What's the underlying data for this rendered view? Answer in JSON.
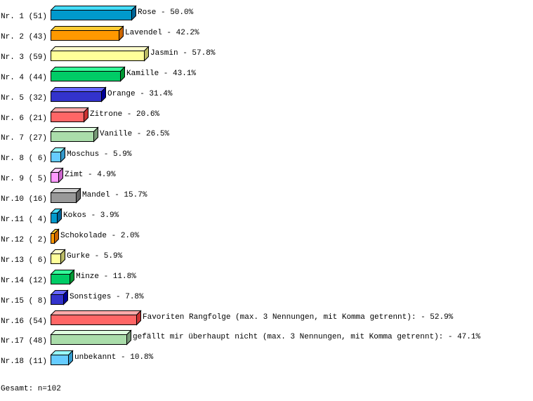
{
  "chart_data": {
    "type": "bar",
    "orientation": "horizontal",
    "style": "3d",
    "grid": false,
    "categories": [
      "Rose",
      "Lavendel",
      "Jasmin",
      "Kamille",
      "Orange",
      "Zitrone",
      "Vanille",
      "Moschus",
      "Zimt",
      "Mandel",
      "Kokos",
      "Schokolade",
      "Gurke",
      "Minze",
      "Sonstiges",
      "Favoriten Rangfolge (max. 3 Nennungen, mit Komma getrennt):",
      "gefällt mir überhaupt nicht (max. 3 Nennungen, mit Komma getrennt):",
      "unbekannt"
    ],
    "row_labels": [
      "Nr. 1 (51)",
      "Nr. 2 (43)",
      "Nr. 3 (59)",
      "Nr. 4 (44)",
      "Nr. 5 (32)",
      "Nr. 6 (21)",
      "Nr. 7 (27)",
      "Nr. 8 ( 6)",
      "Nr. 9 ( 5)",
      "Nr.10 (16)",
      "Nr.11 ( 4)",
      "Nr.12 ( 2)",
      "Nr.13 ( 6)",
      "Nr.14 (12)",
      "Nr.15 ( 8)",
      "Nr.16 (54)",
      "Nr.17 (48)",
      "Nr.18 (11)"
    ],
    "counts": [
      51,
      43,
      59,
      44,
      32,
      21,
      27,
      6,
      5,
      16,
      4,
      2,
      6,
      12,
      8,
      54,
      48,
      11
    ],
    "values": [
      50.0,
      42.2,
      57.8,
      43.1,
      31.4,
      20.6,
      26.5,
      5.9,
      4.9,
      15.7,
      3.9,
      2.0,
      5.9,
      11.8,
      7.8,
      52.9,
      47.1,
      10.8
    ],
    "value_labels": [
      "50.0%",
      "42.2%",
      "57.8%",
      "43.1%",
      "31.4%",
      "20.6%",
      "26.5%",
      "5.9%",
      "4.9%",
      "15.7%",
      "3.9%",
      "2.0%",
      "5.9%",
      "11.8%",
      "7.8%",
      "52.9%",
      "47.1%",
      "10.8%"
    ],
    "unit": "%",
    "palette": [
      {
        "front": "#0099cc",
        "top": "#44ddff",
        "side": "#006699"
      },
      {
        "front": "#ff9900",
        "top": "#ffcc33",
        "side": "#cc6600"
      },
      {
        "front": "#ffff99",
        "top": "#ffffcc",
        "side": "#bbbb66"
      },
      {
        "front": "#00cc66",
        "top": "#33ff99",
        "side": "#009933"
      },
      {
        "front": "#3333cc",
        "top": "#6666ff",
        "side": "#000099"
      },
      {
        "front": "#ff6666",
        "top": "#ffaaaa",
        "side": "#cc3333"
      },
      {
        "front": "#aaddaa",
        "top": "#ddffdd",
        "side": "#779977"
      },
      {
        "front": "#66ccff",
        "top": "#99ffff",
        "side": "#3399cc"
      },
      {
        "front": "#ff99ff",
        "top": "#ffccff",
        "side": "#cc66cc"
      },
      {
        "front": "#999999",
        "top": "#cccccc",
        "side": "#666666"
      }
    ]
  },
  "footer": {
    "total": "Gesamt: n=102"
  }
}
